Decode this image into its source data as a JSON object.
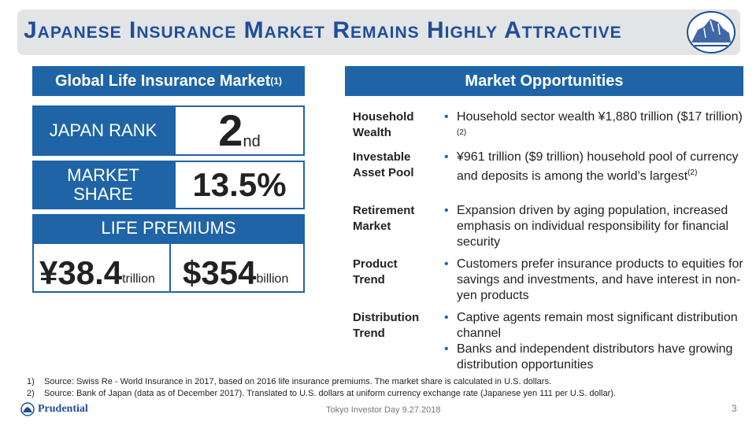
{
  "title": "Japanese Insurance Market Remains Highly Attractive",
  "left_panel": {
    "header": "Global Life Insurance Market",
    "header_sup": "(1)",
    "rank_label": "JAPAN RANK",
    "rank_value": "2",
    "rank_suffix": "nd",
    "share_label_line1": "MARKET",
    "share_label_line2": "SHARE",
    "share_value": "13.5%",
    "premiums_label": "LIFE PREMIUMS",
    "premium_yen": "¥38.4",
    "premium_yen_unit": "trillion",
    "premium_usd": "$354",
    "premium_usd_unit": "billion"
  },
  "right_panel": {
    "header": "Market Opportunities",
    "rows": [
      {
        "label_line1": "Household",
        "label_line2": "Wealth",
        "bullets": [
          {
            "text": "Household sector wealth ¥1,880 trillion ($17 trillion)",
            "sup": "(2)"
          }
        ]
      },
      {
        "label_line1": "Investable",
        "label_line2": "Asset Pool",
        "bullets": [
          {
            "text": "¥961 trillion ($9 trillion) household pool of currency and deposits is among the world’s largest",
            "sup": "(2)"
          }
        ]
      },
      {
        "label_line1": "Retirement",
        "label_line2": "Market",
        "bullets": [
          {
            "text": "Expansion driven by aging population, increased emphasis on individual responsibility for financial security",
            "sup": ""
          }
        ]
      },
      {
        "label_line1": "Product",
        "label_line2": "Trend",
        "bullets": [
          {
            "text": "Customers prefer insurance products to equities for savings and investments, and have interest in non-yen products",
            "sup": ""
          }
        ]
      },
      {
        "label_line1": "Distribution",
        "label_line2": "Trend",
        "bullets": [
          {
            "text": "Captive agents remain most significant distribution channel",
            "sup": ""
          },
          {
            "text": "Banks and independent distributors have growing distribution opportunities",
            "sup": ""
          }
        ]
      }
    ]
  },
  "footnotes": [
    {
      "num": "1)",
      "text": "Source: Swiss Re - World Insurance in 2017, based on 2016 life insurance premiums. The market share is calculated in U.S. dollars."
    },
    {
      "num": "2)",
      "text": "Source:  Bank of Japan (data as of December 2017). Translated to U.S. dollars at uniform currency exchange rate (Japanese yen 111 per U.S. dollar)."
    }
  ],
  "logo_text": "Prudential",
  "footer_text": "Tokyo Investor Day 9.27.2018",
  "page_number": "3",
  "colors": {
    "brand_blue": "#1f64a6",
    "title_blue": "#1f4e9a",
    "title_bar": "#e3e4e6"
  }
}
